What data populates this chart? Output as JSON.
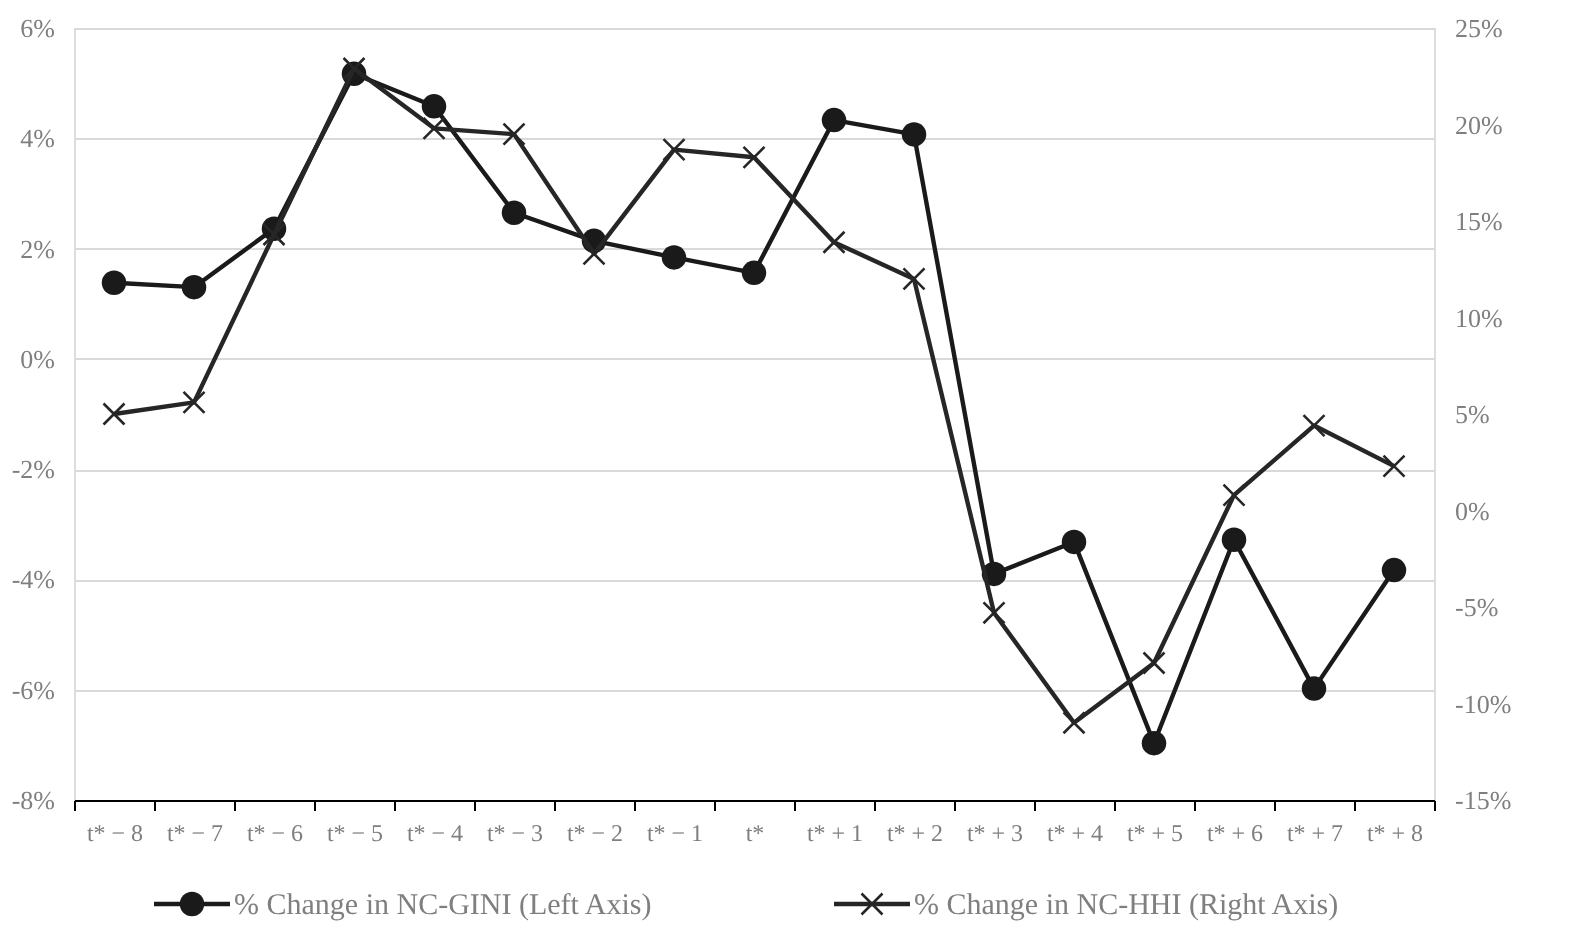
{
  "chart_data": {
    "type": "line",
    "categories": [
      "t* − 8",
      "t* − 7",
      "t* − 6",
      "t* − 5",
      "t* − 4",
      "t* − 3",
      "t* − 2",
      "t* − 1",
      "t*",
      "t* + 1",
      "t* + 2",
      "t* + 3",
      "t* + 4",
      "t* + 5",
      "t* + 6",
      "t* + 7",
      "t* + 8"
    ],
    "series": [
      {
        "name": "% Change in NC-GINI (Left Axis)",
        "color": "#1a1a1a",
        "marker": "circle",
        "values": [
          1.38,
          1.3,
          2.36,
          5.17,
          4.58,
          2.65,
          2.14,
          1.84,
          1.56,
          4.33,
          4.07,
          -3.9,
          -3.32,
          -6.97,
          -3.28,
          -5.98,
          -3.83
        ]
      },
      {
        "name": "% Change in NC-HHI (Right Axis)",
        "color": "#262626",
        "marker": "cross",
        "axis": "y2",
        "values": [
          5.0,
          5.6,
          14.3,
          22.9,
          19.8,
          19.5,
          13.3,
          18.7,
          18.3,
          13.9,
          12.0,
          -5.3,
          -11.0,
          -7.9,
          0.8,
          4.4,
          2.3
        ]
      }
    ],
    "ylim": [
      -8,
      6
    ],
    "yticks": [
      {
        "value": -8,
        "label": "-8%"
      },
      {
        "value": -6,
        "label": "-6%"
      },
      {
        "value": -4,
        "label": "-4%"
      },
      {
        "value": -2,
        "label": "-2%"
      },
      {
        "value": 0,
        "label": "0%"
      },
      {
        "value": 2,
        "label": "2%"
      },
      {
        "value": 4,
        "label": "4%"
      },
      {
        "value": 6,
        "label": "6%"
      }
    ],
    "y2lim": [
      -15,
      25
    ],
    "y2ticks": [
      {
        "value": -15,
        "label": "-15%"
      },
      {
        "value": -10,
        "label": "-10%"
      },
      {
        "value": -5,
        "label": "-5%"
      },
      {
        "value": 0,
        "label": "0%"
      },
      {
        "value": 5,
        "label": "5%"
      },
      {
        "value": 10,
        "label": "10%"
      },
      {
        "value": 15,
        "label": "15%"
      },
      {
        "value": 20,
        "label": "20%"
      },
      {
        "value": 25,
        "label": "25%"
      }
    ],
    "grid": "y",
    "legend": "bottom",
    "line_style": "solid"
  }
}
